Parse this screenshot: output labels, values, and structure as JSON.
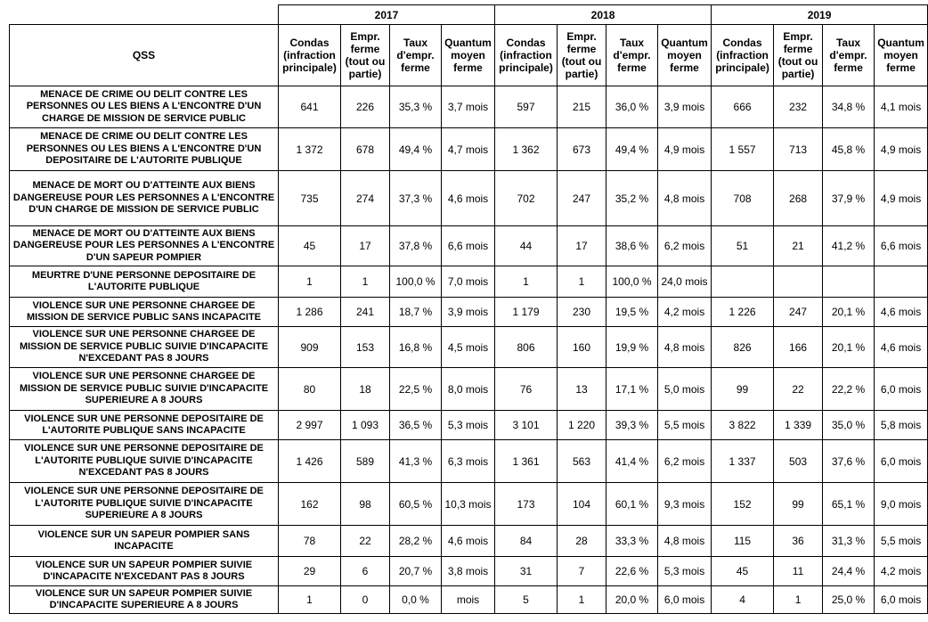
{
  "table": {
    "corner": "QSS",
    "years": [
      "2017",
      "2018",
      "2019"
    ],
    "columns": [
      "Condas (infraction principale)",
      "Empr. ferme (tout ou partie)",
      "Taux d'empr. ferme",
      "Quantum moyen ferme"
    ],
    "rows": [
      {
        "label": "MENACE DE CRIME OU DELIT CONTRE LES PERSONNES OU LES BIENS A L'ENCONTRE D'UN CHARGE DE MISSION DE SERVICE PUBLIC",
        "cells": [
          "641",
          "226",
          "35,3 %",
          "3,7 mois",
          "597",
          "215",
          "36,0 %",
          "3,9 mois",
          "666",
          "232",
          "34,8 %",
          "4,1 mois"
        ]
      },
      {
        "label": "MENACE DE CRIME OU DELIT CONTRE LES PERSONNES OU LES BIENS A L'ENCONTRE D'UN DEPOSITAIRE DE L'AUTORITE PUBLIQUE",
        "cells": [
          "1 372",
          "678",
          "49,4 %",
          "4,7 mois",
          "1 362",
          "673",
          "49,4 %",
          "4,9 mois",
          "1 557",
          "713",
          "45,8 %",
          "4,9 mois"
        ]
      },
      {
        "label": "MENACE DE MORT OU D'ATTEINTE AUX BIENS DANGEREUSE POUR LES PERSONNES A L'ENCONTRE D'UN CHARGE DE MISSION DE SERVICE PUBLIC",
        "cells": [
          "735",
          "274",
          "37,3 %",
          "4,6 mois",
          "702",
          "247",
          "35,2 %",
          "4,8 mois",
          "708",
          "268",
          "37,9 %",
          "4,9 mois"
        ]
      },
      {
        "label": "MENACE DE MORT OU D'ATTEINTE AUX BIENS DANGEREUSE POUR LES PERSONNES A L'ENCONTRE D'UN SAPEUR POMPIER",
        "cells": [
          "45",
          "17",
          "37,8 %",
          "6,6 mois",
          "44",
          "17",
          "38,6 %",
          "6,2 mois",
          "51",
          "21",
          "41,2 %",
          "6,6 mois"
        ]
      },
      {
        "label": "MEURTRE D'UNE PERSONNE DEPOSITAIRE DE L'AUTORITE PUBLIQUE",
        "cells": [
          "1",
          "1",
          "100,0 %",
          "7,0 mois",
          "1",
          "1",
          "100,0 %",
          "24,0 mois",
          null,
          null,
          null,
          null
        ]
      },
      {
        "label": "VIOLENCE SUR UNE PERSONNE CHARGEE DE MISSION DE SERVICE PUBLIC SANS INCAPACITE",
        "cells": [
          "1 286",
          "241",
          "18,7 %",
          "3,9 mois",
          "1 179",
          "230",
          "19,5 %",
          "4,2 mois",
          "1 226",
          "247",
          "20,1 %",
          "4,6 mois"
        ]
      },
      {
        "label": "VIOLENCE SUR UNE PERSONNE CHARGEE DE MISSION DE SERVICE PUBLIC SUIVIE D'INCAPACITE N'EXCEDANT PAS 8 JOURS",
        "cells": [
          "909",
          "153",
          "16,8 %",
          "4,5 mois",
          "806",
          "160",
          "19,9 %",
          "4,8 mois",
          "826",
          "166",
          "20,1 %",
          "4,6 mois"
        ]
      },
      {
        "label": "VIOLENCE SUR UNE PERSONNE CHARGEE DE MISSION DE SERVICE PUBLIC SUIVIE D'INCAPACITE SUPERIEURE A 8 JOURS",
        "cells": [
          "80",
          "18",
          "22,5 %",
          "8,0 mois",
          "76",
          "13",
          "17,1 %",
          "5,0 mois",
          "99",
          "22",
          "22,2 %",
          "6,0 mois"
        ]
      },
      {
        "label": "VIOLENCE SUR UNE PERSONNE DEPOSITAIRE DE L'AUTORITE PUBLIQUE SANS INCAPACITE",
        "cells": [
          "2 997",
          "1 093",
          "36,5 %",
          "5,3 mois",
          "3 101",
          "1 220",
          "39,3 %",
          "5,5 mois",
          "3 822",
          "1 339",
          "35,0 %",
          "5,8 mois"
        ]
      },
      {
        "label": "VIOLENCE SUR UNE PERSONNE DEPOSITAIRE DE L'AUTORITE PUBLIQUE SUIVIE D'INCAPACITE N'EXCEDANT PAS 8 JOURS",
        "cells": [
          "1 426",
          "589",
          "41,3 %",
          "6,3 mois",
          "1 361",
          "563",
          "41,4 %",
          "6,2 mois",
          "1 337",
          "503",
          "37,6 %",
          "6,0 mois"
        ]
      },
      {
        "label": "VIOLENCE SUR UNE PERSONNE DEPOSITAIRE DE L'AUTORITE PUBLIQUE SUIVIE D'INCAPACITE SUPERIEURE A 8 JOURS",
        "cells": [
          "162",
          "98",
          "60,5 %",
          "10,3 mois",
          "173",
          "104",
          "60,1 %",
          "9,3 mois",
          "152",
          "99",
          "65,1 %",
          "9,0 mois"
        ]
      },
      {
        "label": "VIOLENCE SUR UN SAPEUR POMPIER SANS INCAPACITE",
        "cells": [
          "78",
          "22",
          "28,2 %",
          "4,6 mois",
          "84",
          "28",
          "33,3 %",
          "4,8 mois",
          "115",
          "36",
          "31,3 %",
          "5,5 mois"
        ]
      },
      {
        "label": "VIOLENCE SUR UN SAPEUR POMPIER SUIVIE D'INCAPACITE N'EXCEDANT PAS 8 JOURS",
        "cells": [
          "29",
          "6",
          "20,7 %",
          "3,8 mois",
          "31",
          "7",
          "22,6 %",
          "5,3 mois",
          "45",
          "11",
          "24,4 %",
          "4,2 mois"
        ]
      },
      {
        "label": "VIOLENCE SUR UN SAPEUR POMPIER SUIVIE D'INCAPACITE SUPERIEURE A 8 JOURS",
        "cells": [
          "1",
          "0",
          "0,0 %",
          "mois",
          "5",
          "1",
          "20,0 %",
          "6,0 mois",
          "4",
          "1",
          "25,0 %",
          "6,0 mois"
        ]
      }
    ]
  }
}
